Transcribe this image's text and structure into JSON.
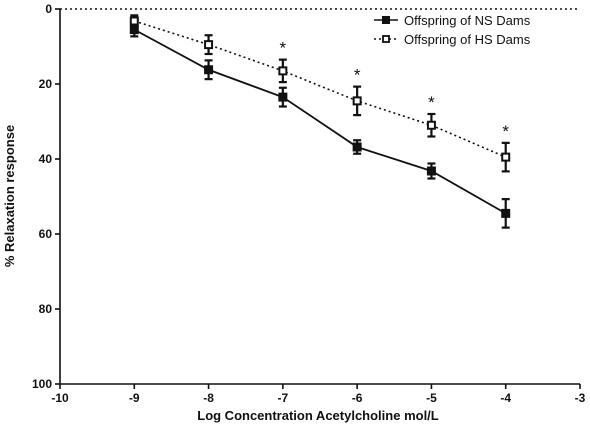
{
  "chart_data": {
    "type": "line",
    "title": "",
    "xlabel": "Log Concentration Acetylcholine mol/L",
    "ylabel": "% Relaxation response",
    "xlim": [
      -10,
      -3
    ],
    "ylim": [
      0,
      100
    ],
    "y_inverted": true,
    "x_ticks": [
      -10,
      -9,
      -8,
      -7,
      -6,
      -5,
      -4,
      -3
    ],
    "y_ticks": [
      0,
      20,
      40,
      60,
      80,
      100
    ],
    "x_tick_labels": [
      "-10",
      "-9",
      "-8",
      "-7",
      "-6",
      "-5",
      "-4",
      "-3"
    ],
    "y_tick_labels": [
      "0",
      "20",
      "40",
      "60",
      "80",
      "100"
    ],
    "reference_line": {
      "y": 0,
      "style": "dotted"
    },
    "legend_position": "top-right",
    "series": [
      {
        "name": "Offspring of NS Dams",
        "marker": "filled-square",
        "line_style": "solid",
        "color": "#111111",
        "x": [
          -9,
          -8,
          -7,
          -6,
          -5,
          -4
        ],
        "y": [
          5.5,
          16.2,
          23.5,
          36.8,
          43.2,
          54.5
        ],
        "error": [
          1.8,
          2.5,
          2.5,
          1.8,
          2.0,
          3.8
        ]
      },
      {
        "name": "Offspring of HS Dams",
        "marker": "open-square",
        "line_style": "dotted",
        "color": "#111111",
        "x": [
          -9,
          -8,
          -7,
          -6,
          -5,
          -4
        ],
        "y": [
          3.2,
          9.5,
          16.5,
          24.5,
          31.0,
          39.5
        ],
        "error": [
          1.5,
          2.5,
          3.0,
          3.8,
          3.0,
          3.8
        ]
      }
    ],
    "annotations": [
      {
        "x": -7,
        "text": "*"
      },
      {
        "x": -6,
        "text": "*"
      },
      {
        "x": -5,
        "text": "*"
      },
      {
        "x": -4,
        "text": "*"
      }
    ]
  }
}
